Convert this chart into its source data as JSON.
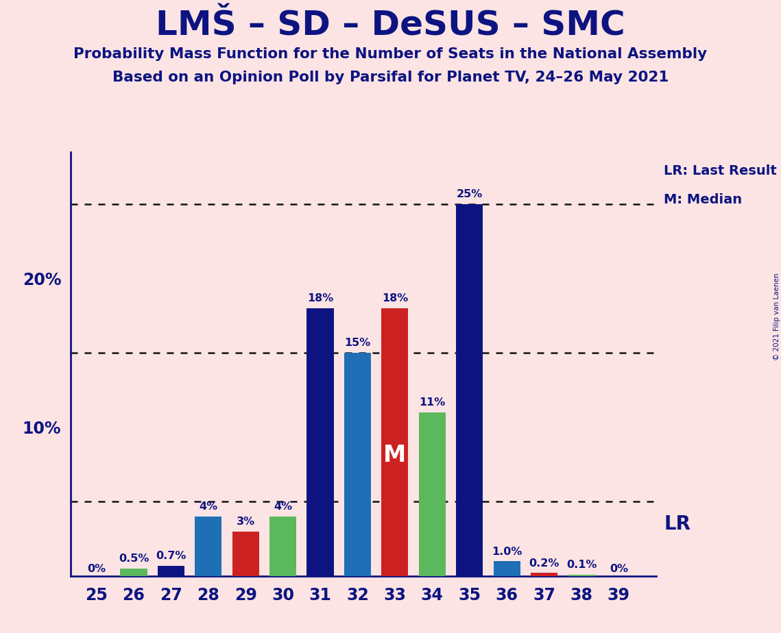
{
  "title": "LMŠ – SD – DeSUS – SMC",
  "subtitle1": "Probability Mass Function for the Number of Seats in the National Assembly",
  "subtitle2": "Based on an Opinion Poll by Parsifal for Planet TV, 24–26 May 2021",
  "copyright": "© 2021 Filip van Laenen",
  "seats": [
    25,
    26,
    27,
    28,
    29,
    30,
    31,
    32,
    33,
    34,
    35,
    36,
    37,
    38,
    39
  ],
  "values": [
    0.0,
    0.5,
    0.7,
    4.0,
    3.0,
    4.0,
    18.0,
    15.0,
    18.0,
    11.0,
    25.0,
    1.0,
    0.2,
    0.1,
    0.0
  ],
  "labels": [
    "0%",
    "0.5%",
    "0.7%",
    "4%",
    "3%",
    "4%",
    "18%",
    "15%",
    "18%",
    "11%",
    "25%",
    "1.0%",
    "0.2%",
    "0.1%",
    "0%"
  ],
  "colors": [
    "#0d1481",
    "#5cb85c",
    "#0d1481",
    "#1e6fb5",
    "#cc2222",
    "#5cb85c",
    "#0d1481",
    "#1e6fb5",
    "#cc2222",
    "#5cb85c",
    "#0d1481",
    "#1e6fb5",
    "#cc2222",
    "#5cb85c",
    "#0d1481"
  ],
  "background_color": "#fce4e4",
  "lr_value": 5.0,
  "median_seat": 33,
  "grid_lines": [
    5.0,
    15.0,
    25.0
  ],
  "ylim_max": 28.5,
  "title_color": "#0d1481",
  "text_color": "#0d1481",
  "ytick_positions": [
    10,
    20
  ],
  "ytick_labels": [
    "10%",
    "20%"
  ],
  "legend_lr_text": "LR: Last Result",
  "legend_m_text": "M: Median",
  "lr_text": "LR",
  "median_label": "M",
  "bar_width": 0.72
}
